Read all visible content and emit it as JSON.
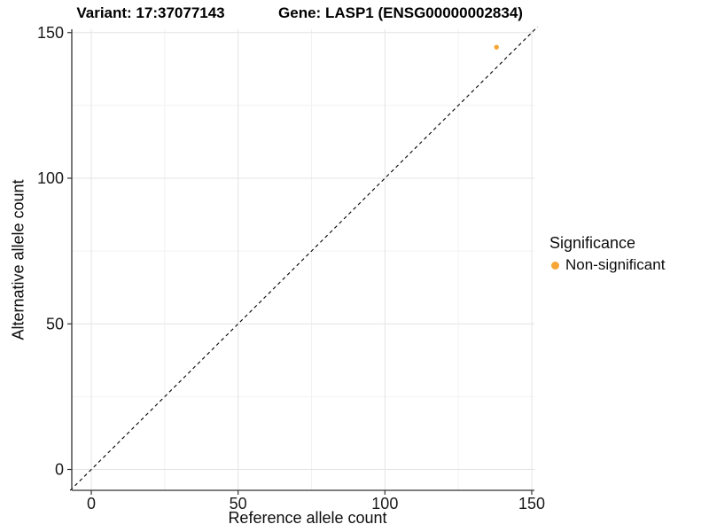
{
  "title": {
    "variant": "Variant: 17:37077143",
    "gene": "Gene: LASP1 (ENSG00000002834)"
  },
  "chart_data": {
    "type": "scatter",
    "title": "Variant: 17:37077143   Gene: LASP1 (ENSG00000002834)",
    "xlabel": "Reference allele count",
    "ylabel": "Alternative allele count",
    "xlim": [
      -7,
      151
    ],
    "ylim": [
      -7,
      151
    ],
    "x_ticks": [
      0,
      50,
      100,
      150
    ],
    "y_ticks": [
      0,
      50,
      100,
      150
    ],
    "x_minor_ticks": [
      25,
      75,
      125
    ],
    "y_minor_ticks": [
      25,
      75,
      125
    ],
    "grid": true,
    "legend_position": "right",
    "series": [
      {
        "name": "Non-significant",
        "color": "#F7A636",
        "points": [
          [
            138,
            145
          ]
        ]
      }
    ],
    "reference_line": {
      "type": "identity",
      "slope": 1,
      "intercept": 0,
      "style": "dashed",
      "color": "#000000"
    },
    "colors": {
      "grid_major": "#E4E4E4",
      "grid_minor": "#F2F2F2",
      "axis_line": "#333333",
      "tick_label": "#1a1a1a",
      "background": "#FFFFFF"
    }
  },
  "legend": {
    "title": "Significance",
    "items": [
      {
        "label": "Non-significant",
        "color": "#F7A636"
      }
    ]
  }
}
